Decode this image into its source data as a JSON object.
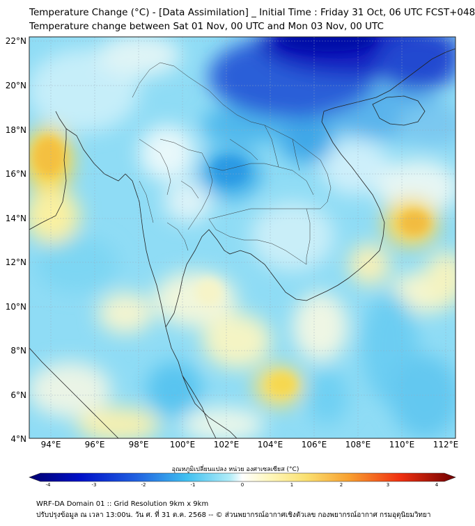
{
  "title_line1": "Temperature Change (°C) - [Data Assimilation] _ Initial Time : Friday 31 Oct, 06 UTC FCST+048",
  "title_line2": "Temperature change between Sat 01 Nov, 00 UTC and Mon 03 Nov, 00 UTC",
  "map": {
    "lat_range": [
      4,
      22
    ],
    "lon_range": [
      93,
      112.5
    ],
    "lat_labels": [
      "22°N",
      "20°N",
      "18°N",
      "16°N",
      "14°N",
      "12°N",
      "10°N",
      "8°N",
      "6°N",
      "4°N"
    ],
    "lon_labels": [
      "94°E",
      "96°E",
      "98°E",
      "100°E",
      "102°E",
      "104°E",
      "106°E",
      "108°E",
      "110°E",
      "112°E"
    ],
    "colors": {
      "strong_cold": "#0814c8",
      "cold": "#3c8ae6",
      "cool": "#6cd2f4",
      "light_cool": "#a8e8f8",
      "near_zero": "#eaf8fb",
      "warm_light": "#fbf4a8",
      "warm": "#f8d850",
      "hot": "#f0b030"
    }
  },
  "colorbar": {
    "label": "อุณหภูมิเปลี่ยนแปลง หน่วย องศาเซลเซียส (°C)",
    "min": -4,
    "max": 4,
    "ticks": [
      "-4",
      "-3",
      "-2",
      "-1",
      "0",
      "1",
      "2",
      "3",
      "4"
    ]
  },
  "footer_line1": "WRF-DA Domain 01 :: Grid Resolution 9km x 9km",
  "footer_line2": "ปรับปรุงข้อมูล ณ เวลา 13:00น. วัน ศ. ที่ 31 ต.ค. 2568 -- © ส่วนพยากรณ์อากาศเชิงตัวเลข กองพยากรณ์อากาศ กรมอุตุนิยมวิทยา"
}
